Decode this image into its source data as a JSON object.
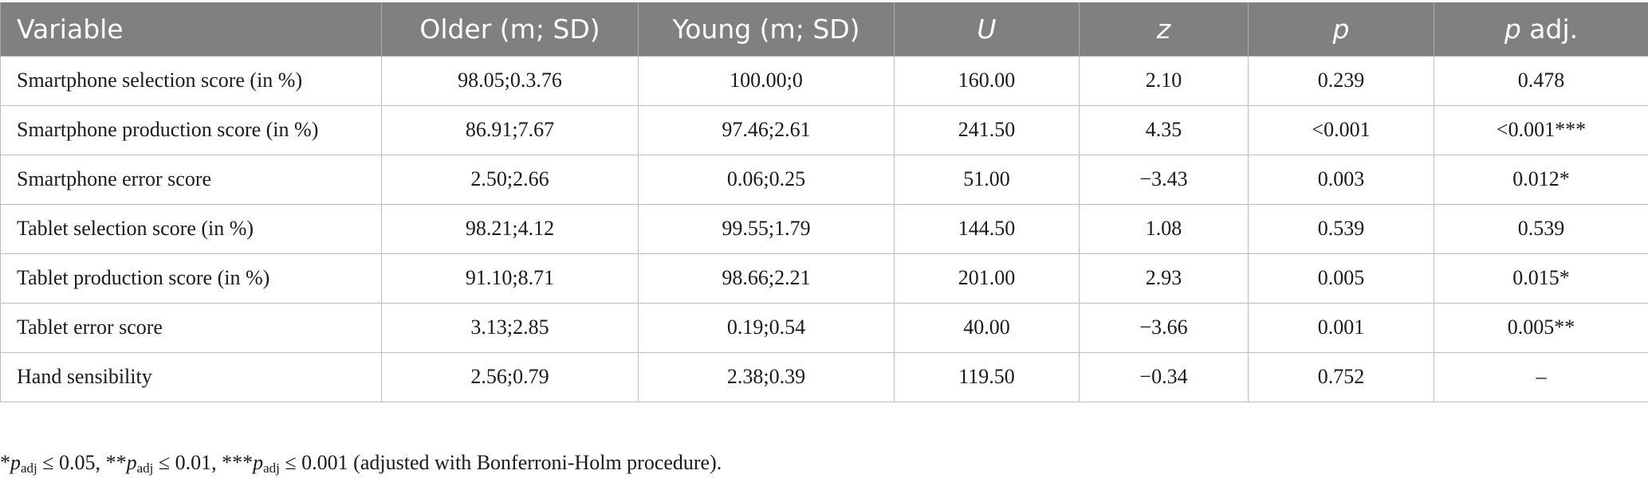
{
  "table": {
    "headers": [
      {
        "label": "Variable",
        "italic": false
      },
      {
        "label": "Older (m; SD)",
        "italic": false
      },
      {
        "label": "Young (m; SD)",
        "italic": false
      },
      {
        "label": "U",
        "italic": true
      },
      {
        "label": "z",
        "italic": true
      },
      {
        "label": "p",
        "italic": true
      },
      {
        "label": "p adj.",
        "italic": false
      }
    ],
    "rows": [
      {
        "variable": "Smartphone selection score (in %)",
        "older": "98.05;0.3.76",
        "young": "100.00;0",
        "u": "160.00",
        "z": "2.10",
        "p": "0.239",
        "p_adj": "0.478"
      },
      {
        "variable": "Smartphone production score (in %)",
        "older": "86.91;7.67",
        "young": "97.46;2.61",
        "u": "241.50",
        "z": "4.35",
        "p": "<0.001",
        "p_adj": "<0.001***"
      },
      {
        "variable": "Smartphone error score",
        "older": "2.50;2.66",
        "young": "0.06;0.25",
        "u": "51.00",
        "z": "−3.43",
        "p": "0.003",
        "p_adj": "0.012*"
      },
      {
        "variable": "Tablet selection score (in %)",
        "older": "98.21;4.12",
        "young": "99.55;1.79",
        "u": "144.50",
        "z": "1.08",
        "p": "0.539",
        "p_adj": "0.539"
      },
      {
        "variable": "Tablet production score (in %)",
        "older": "91.10;8.71",
        "young": "98.66;2.21",
        "u": "201.00",
        "z": "2.93",
        "p": "0.005",
        "p_adj": "0.015*"
      },
      {
        "variable": "Tablet error score",
        "older": "3.13;2.85",
        "young": "0.19;0.54",
        "u": "40.00",
        "z": "−3.66",
        "p": "0.001",
        "p_adj": "0.005**"
      },
      {
        "variable": "Hand sensibility",
        "older": "2.56;0.79",
        "young": "2.38;0.39",
        "u": "119.50",
        "z": "−0.34",
        "p": "0.752",
        "p_adj": "–"
      }
    ]
  },
  "footnote": {
    "star1": "*",
    "star2": "**",
    "star3": "***",
    "p_symbol": "p",
    "adj_sub": "adj",
    "le1": " ≤ 0.05, ",
    "le2": " ≤ 0.01, ",
    "le3": " ≤ 0.001 (adjusted with Bonferroni-Holm procedure)."
  },
  "colors": {
    "header_bg": "#808080",
    "header_text": "#ffffff",
    "border": "#bdbdbd"
  }
}
